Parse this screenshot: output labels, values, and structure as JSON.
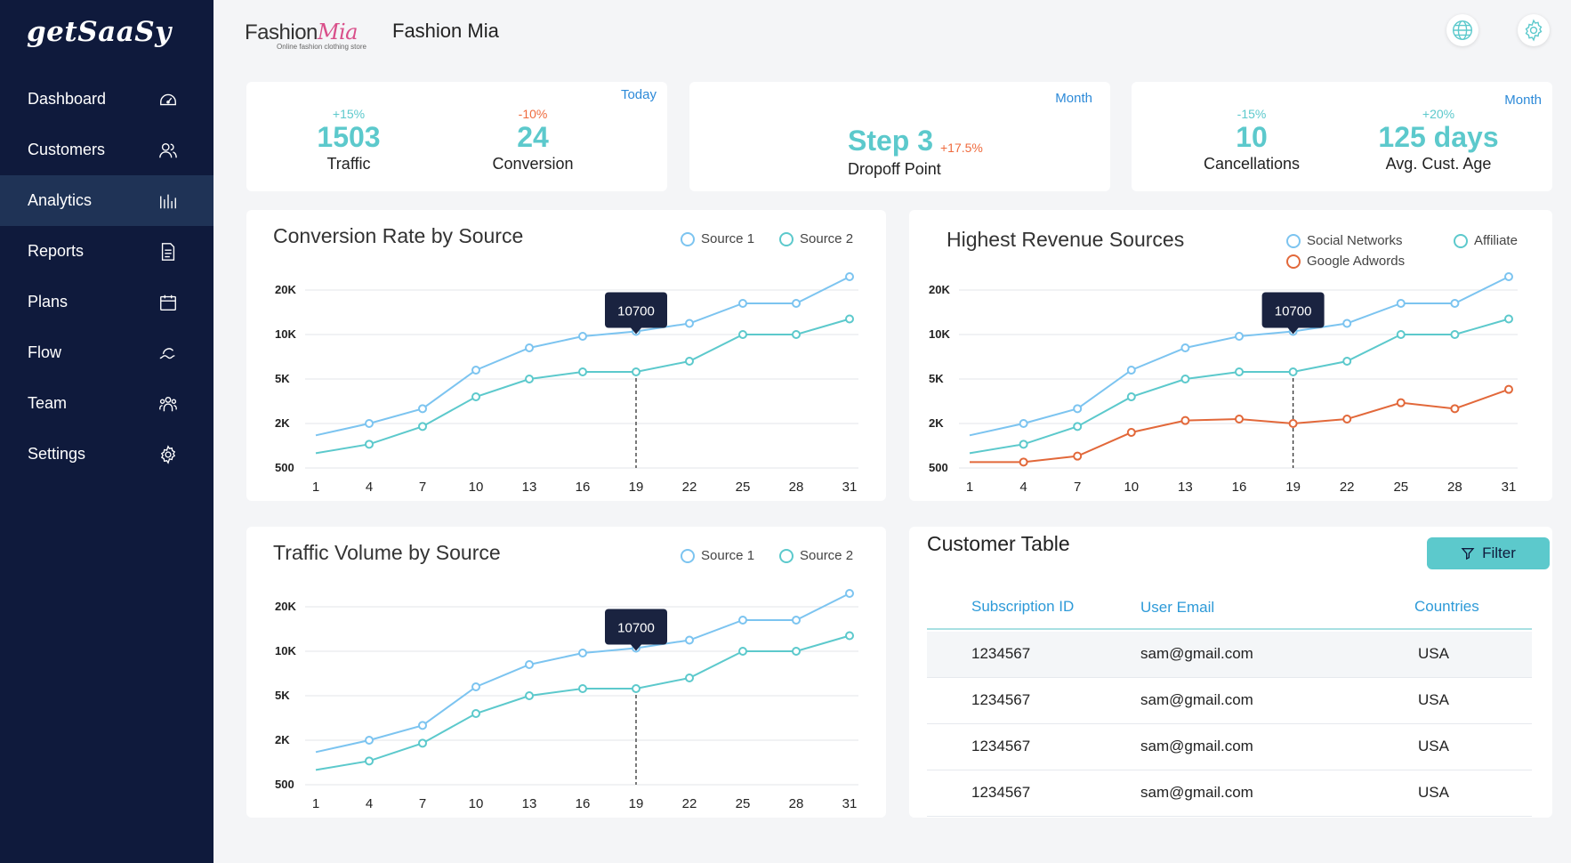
{
  "sidebar": {
    "brand": "getSaaSy",
    "items": [
      {
        "label": "Dashboard",
        "icon": "dashboard-icon"
      },
      {
        "label": "Customers",
        "icon": "users-icon"
      },
      {
        "label": "Analytics",
        "icon": "analytics-icon",
        "active": true
      },
      {
        "label": "Reports",
        "icon": "document-icon"
      },
      {
        "label": "Plans",
        "icon": "calendar-icon"
      },
      {
        "label": "Flow",
        "icon": "wave-icon"
      },
      {
        "label": "Team",
        "icon": "team-icon"
      },
      {
        "label": "Settings",
        "icon": "gear-icon"
      }
    ]
  },
  "header": {
    "logo_text": "Fashion",
    "logo_script": "Mia",
    "logo_tagline": "Online fashion clothing store",
    "title": "Fashion Mia"
  },
  "cards": {
    "traffic_conversion": {
      "period": "Today",
      "traffic": {
        "delta": "+15%",
        "value": "1503",
        "label": "Traffic"
      },
      "conversion": {
        "delta": "-10%",
        "value": "24",
        "label": "Conversion"
      }
    },
    "dropoff": {
      "period": "Month",
      "value": "Step 3",
      "delta": "+17.5%",
      "label": "Dropoff Point"
    },
    "cancellations_age": {
      "period": "Month",
      "cancellations": {
        "delta": "-15%",
        "value": "10",
        "label": "Cancellations"
      },
      "age": {
        "delta": "+20%",
        "value": "125 days",
        "label": "Avg. Cust. Age"
      }
    }
  },
  "colors": {
    "blue": "#7cc4f0",
    "teal": "#5cc9cc",
    "orange": "#e2683a",
    "sidebar": "#0f1a3c"
  },
  "chart_data": [
    {
      "type": "line",
      "title": "Conversion Rate by Source",
      "x": [
        1,
        4,
        7,
        10,
        13,
        16,
        19,
        22,
        25,
        28,
        31
      ],
      "y_ticks": [
        "500",
        "2K",
        "5K",
        "10K",
        "20K"
      ],
      "series": [
        {
          "name": "Source 1",
          "values": [
            1600,
            2000,
            3000,
            6000,
            8500,
            9800,
            10700,
            12500,
            17000,
            17000,
            23000
          ]
        },
        {
          "name": "Source 2",
          "values": [
            1000,
            1300,
            1900,
            3800,
            5000,
            5800,
            5800,
            7000,
            10000,
            10000,
            13500
          ]
        }
      ],
      "tooltip": {
        "x": 19,
        "label": "10700"
      },
      "legend_position": "top-right"
    },
    {
      "type": "line",
      "title": "Highest Revenue Sources",
      "x": [
        1,
        4,
        7,
        10,
        13,
        16,
        19,
        22,
        25,
        28,
        31
      ],
      "y_ticks": [
        "500",
        "2K",
        "5K",
        "10K",
        "20K"
      ],
      "series": [
        {
          "name": "Social Networks",
          "values": [
            1600,
            2000,
            3000,
            6000,
            8500,
            9800,
            10700,
            12500,
            17000,
            17000,
            23000
          ]
        },
        {
          "name": "Affiliate",
          "values": [
            1000,
            1300,
            1900,
            3800,
            5000,
            5800,
            5800,
            7000,
            10000,
            10000,
            13500
          ]
        },
        {
          "name": "Google Adwords",
          "values": [
            700,
            700,
            900,
            1700,
            2200,
            2300,
            2000,
            2300,
            3400,
            3000,
            4300
          ]
        }
      ],
      "tooltip": {
        "x": 19,
        "label": "10700"
      },
      "legend_position": "top-right"
    },
    {
      "type": "line",
      "title": "Traffic Volume by Source",
      "x": [
        1,
        4,
        7,
        10,
        13,
        16,
        19,
        22,
        25,
        28,
        31
      ],
      "y_ticks": [
        "500",
        "2K",
        "5K",
        "10K",
        "20K"
      ],
      "series": [
        {
          "name": "Source 1",
          "values": [
            1600,
            2000,
            3000,
            6000,
            8500,
            9800,
            10700,
            12500,
            17000,
            17000,
            23000
          ]
        },
        {
          "name": "Source 2",
          "values": [
            1000,
            1300,
            1900,
            3800,
            5000,
            5800,
            5800,
            7000,
            10000,
            10000,
            13500
          ]
        }
      ],
      "tooltip": {
        "x": 19,
        "label": "10700"
      },
      "legend_position": "top-right"
    }
  ],
  "table": {
    "title": "Customer Table",
    "filter_label": "Filter",
    "columns": [
      "Subscription ID",
      "User Email",
      "Countries"
    ],
    "rows": [
      [
        "1234567",
        "sam@gmail.com",
        "USA"
      ],
      [
        "1234567",
        "sam@gmail.com",
        "USA"
      ],
      [
        "1234567",
        "sam@gmail.com",
        "USA"
      ],
      [
        "1234567",
        "sam@gmail.com",
        "USA"
      ]
    ]
  }
}
